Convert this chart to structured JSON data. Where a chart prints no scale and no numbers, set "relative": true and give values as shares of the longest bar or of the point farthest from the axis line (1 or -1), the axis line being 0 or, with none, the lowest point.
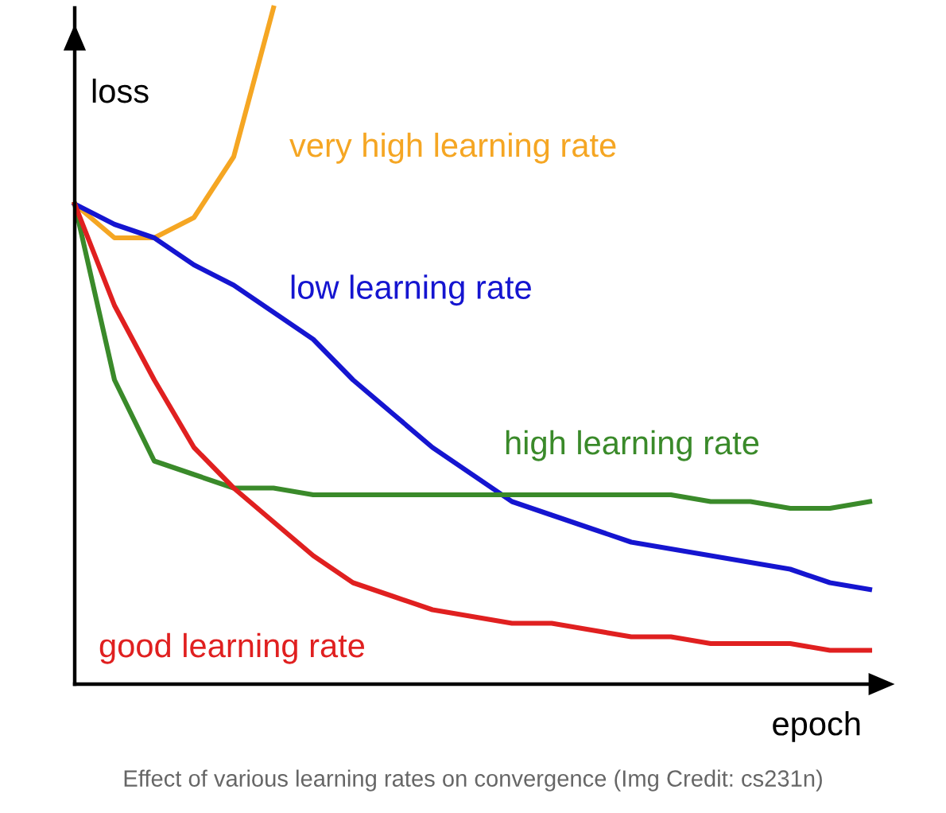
{
  "chart_data": {
    "type": "line",
    "relative": true,
    "xlabel": "epoch",
    "ylabel": "loss",
    "legend": false,
    "marker": "none",
    "line_style": "solid",
    "categories": [
      null,
      null,
      null,
      null,
      null,
      null,
      null,
      null,
      null,
      null,
      null,
      null,
      null,
      null,
      null,
      null,
      null,
      null,
      null,
      null,
      null
    ],
    "series": [
      {
        "name": "very high learning rate",
        "color": "#f5a623",
        "values": [
          0.71,
          0.66,
          0.66,
          0.69,
          0.78,
          1.0,
          null,
          null,
          null,
          null,
          null,
          null,
          null,
          null,
          null,
          null,
          null,
          null,
          null,
          null,
          null
        ]
      },
      {
        "name": "low learning rate",
        "color": "#1515d0",
        "values": [
          0.71,
          0.68,
          0.66,
          0.62,
          0.59,
          0.55,
          0.51,
          0.45,
          0.4,
          0.35,
          0.31,
          0.27,
          0.25,
          0.23,
          0.21,
          0.2,
          0.19,
          0.18,
          0.17,
          0.15,
          0.14
        ]
      },
      {
        "name": "high learning rate",
        "color": "#3a8a2a",
        "values": [
          0.71,
          0.45,
          0.33,
          0.31,
          0.29,
          0.29,
          0.28,
          0.28,
          0.28,
          0.28,
          0.28,
          0.28,
          0.28,
          0.28,
          0.28,
          0.28,
          0.27,
          0.27,
          0.26,
          0.26,
          0.27
        ]
      },
      {
        "name": "good learning rate",
        "color": "#e02020",
        "values": [
          0.71,
          0.56,
          0.45,
          0.35,
          0.29,
          0.24,
          0.19,
          0.15,
          0.13,
          0.11,
          0.1,
          0.09,
          0.09,
          0.08,
          0.07,
          0.07,
          0.06,
          0.06,
          0.06,
          0.05,
          0.05
        ]
      }
    ],
    "annotations": [
      "Effect of various learning rates on convergence (Img Credit: cs231n)"
    ]
  }
}
